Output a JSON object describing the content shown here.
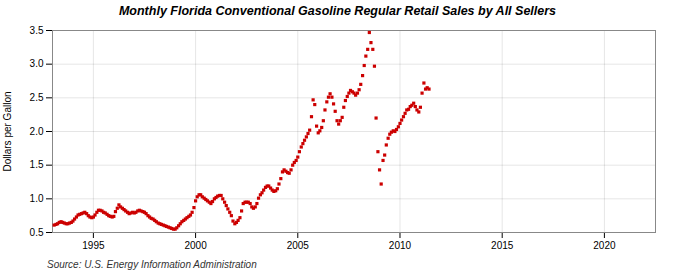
{
  "chart_data": {
    "type": "scatter",
    "title": "Monthly Florida Conventional Gasoline Regular Retail Sales by All Sellers",
    "ylabel": "Dollars per Gallon",
    "annotations": [
      "Source: U.S. Energy Information Administration"
    ],
    "color": "#CC0000",
    "marker": "square",
    "grid": true,
    "xlim": [
      1993.0,
      2022.5
    ],
    "ylim": [
      0.5,
      3.5
    ],
    "xticks": [
      1995,
      2000,
      2005,
      2010,
      2015,
      2020
    ],
    "yticks": [
      0.5,
      {
        "value": 1.0,
        "label": "1.0"
      },
      1.5,
      {
        "value": 2.0,
        "label": "2.0"
      },
      2.5,
      {
        "value": 3.0,
        "label": "3.0"
      },
      3.5
    ],
    "x": [
      1993.08,
      1993.17,
      1993.25,
      1993.33,
      1993.42,
      1993.5,
      1993.58,
      1993.67,
      1993.75,
      1993.83,
      1993.92,
      1994.0,
      1994.08,
      1994.17,
      1994.25,
      1994.33,
      1994.42,
      1994.5,
      1994.58,
      1994.67,
      1994.75,
      1994.83,
      1994.92,
      1995.0,
      1995.08,
      1995.17,
      1995.25,
      1995.33,
      1995.42,
      1995.5,
      1995.58,
      1995.67,
      1995.75,
      1995.83,
      1995.92,
      1996.0,
      1996.08,
      1996.17,
      1996.25,
      1996.33,
      1996.42,
      1996.5,
      1996.58,
      1996.67,
      1996.75,
      1996.83,
      1996.92,
      1997.0,
      1997.08,
      1997.17,
      1997.25,
      1997.33,
      1997.42,
      1997.5,
      1997.58,
      1997.67,
      1997.75,
      1997.83,
      1997.92,
      1998.0,
      1998.08,
      1998.17,
      1998.25,
      1998.33,
      1998.42,
      1998.5,
      1998.58,
      1998.67,
      1998.75,
      1998.83,
      1998.92,
      1999.0,
      1999.08,
      1999.17,
      1999.25,
      1999.33,
      1999.42,
      1999.5,
      1999.58,
      1999.67,
      1999.75,
      1999.83,
      1999.92,
      2000.0,
      2000.08,
      2000.17,
      2000.25,
      2000.33,
      2000.42,
      2000.5,
      2000.58,
      2000.67,
      2000.75,
      2000.83,
      2000.92,
      2001.0,
      2001.08,
      2001.17,
      2001.25,
      2001.33,
      2001.42,
      2001.5,
      2001.58,
      2001.67,
      2001.75,
      2001.83,
      2001.92,
      2002.0,
      2002.08,
      2002.17,
      2002.25,
      2002.33,
      2002.42,
      2002.5,
      2002.58,
      2002.67,
      2002.75,
      2002.83,
      2002.92,
      2003.0,
      2003.08,
      2003.17,
      2003.25,
      2003.33,
      2003.42,
      2003.5,
      2003.58,
      2003.67,
      2003.75,
      2003.83,
      2003.92,
      2004.0,
      2004.08,
      2004.17,
      2004.25,
      2004.33,
      2004.42,
      2004.5,
      2004.58,
      2004.67,
      2004.75,
      2004.83,
      2004.92,
      2005.0,
      2005.08,
      2005.17,
      2005.25,
      2005.33,
      2005.42,
      2005.5,
      2005.58,
      2005.67,
      2005.75,
      2005.83,
      2005.92,
      2006.0,
      2006.08,
      2006.17,
      2006.25,
      2006.33,
      2006.42,
      2006.5,
      2006.58,
      2006.67,
      2006.75,
      2006.83,
      2006.92,
      2007.0,
      2007.08,
      2007.17,
      2007.25,
      2007.33,
      2007.42,
      2007.5,
      2007.58,
      2007.67,
      2007.75,
      2007.83,
      2007.92,
      2008.0,
      2008.08,
      2008.17,
      2008.25,
      2008.33,
      2008.42,
      2008.5,
      2008.58,
      2008.67,
      2008.75,
      2008.83,
      2008.92,
      2009.0,
      2009.08,
      2009.17,
      2009.25,
      2009.33,
      2009.42,
      2009.5,
      2009.58,
      2009.67,
      2009.75,
      2009.83,
      2009.92,
      2010.0,
      2010.08,
      2010.17,
      2010.25,
      2010.33,
      2010.42,
      2010.5,
      2010.58,
      2010.67,
      2010.75,
      2010.83,
      2010.92,
      2011.0,
      2011.08,
      2011.17,
      2011.25,
      2011.33,
      2011.42
    ],
    "values": [
      0.61,
      0.62,
      0.63,
      0.65,
      0.66,
      0.65,
      0.64,
      0.63,
      0.63,
      0.64,
      0.65,
      0.67,
      0.7,
      0.73,
      0.76,
      0.77,
      0.78,
      0.79,
      0.8,
      0.78,
      0.75,
      0.73,
      0.72,
      0.73,
      0.76,
      0.8,
      0.83,
      0.83,
      0.82,
      0.8,
      0.79,
      0.77,
      0.75,
      0.74,
      0.73,
      0.74,
      0.81,
      0.86,
      0.91,
      0.88,
      0.86,
      0.84,
      0.82,
      0.8,
      0.78,
      0.79,
      0.8,
      0.79,
      0.8,
      0.82,
      0.83,
      0.82,
      0.81,
      0.8,
      0.78,
      0.75,
      0.73,
      0.71,
      0.7,
      0.68,
      0.66,
      0.64,
      0.63,
      0.62,
      0.61,
      0.6,
      0.59,
      0.58,
      0.57,
      0.56,
      0.55,
      0.55,
      0.57,
      0.6,
      0.63,
      0.66,
      0.68,
      0.7,
      0.72,
      0.74,
      0.76,
      0.8,
      0.87,
      0.97,
      1.03,
      1.06,
      1.06,
      1.03,
      1.01,
      0.99,
      0.97,
      0.95,
      0.93,
      0.96,
      1.0,
      1.02,
      1.04,
      1.05,
      1.05,
      1.0,
      0.95,
      0.9,
      0.85,
      0.8,
      0.75,
      0.67,
      0.63,
      0.65,
      0.68,
      0.72,
      0.82,
      0.93,
      0.95,
      0.95,
      0.95,
      0.93,
      0.88,
      0.86,
      0.88,
      0.93,
      1.01,
      1.06,
      1.09,
      1.13,
      1.17,
      1.19,
      1.19,
      1.16,
      1.13,
      1.11,
      1.12,
      1.15,
      1.22,
      1.3,
      1.4,
      1.43,
      1.41,
      1.39,
      1.38,
      1.43,
      1.5,
      1.54,
      1.57,
      1.62,
      1.7,
      1.77,
      1.82,
      1.87,
      1.92,
      1.97,
      2.02,
      2.22,
      2.47,
      2.4,
      2.08,
      1.98,
      2.01,
      2.06,
      2.16,
      2.32,
      2.44,
      2.51,
      2.56,
      2.51,
      2.41,
      2.3,
      2.16,
      2.11,
      2.16,
      2.21,
      2.36,
      2.46,
      2.52,
      2.57,
      2.61,
      2.59,
      2.57,
      2.54,
      2.57,
      2.62,
      2.7,
      2.83,
      2.98,
      3.12,
      3.22,
      3.47,
      3.32,
      3.22,
      2.97,
      2.2,
      1.7,
      1.43,
      1.22,
      1.57,
      1.65,
      1.8,
      1.9,
      1.96,
      1.99,
      2.01,
      2.0,
      2.03,
      2.07,
      2.12,
      2.17,
      2.22,
      2.27,
      2.32,
      2.33,
      2.37,
      2.39,
      2.42,
      2.37,
      2.32,
      2.29,
      2.36,
      2.57,
      2.72,
      2.63,
      2.65,
      2.63
    ]
  }
}
